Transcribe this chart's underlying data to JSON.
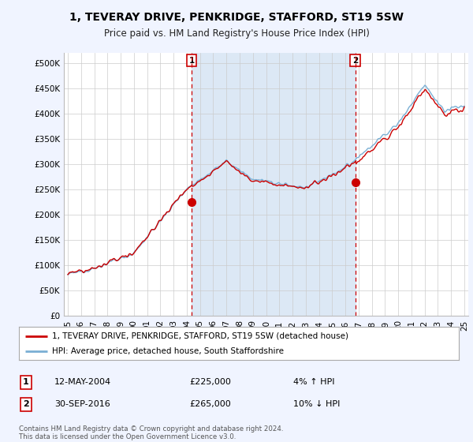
{
  "title": "1, TEVERAY DRIVE, PENKRIDGE, STAFFORD, ST19 5SW",
  "subtitle": "Price paid vs. HM Land Registry's House Price Index (HPI)",
  "ylabel_ticks": [
    "£0",
    "£50K",
    "£100K",
    "£150K",
    "£200K",
    "£250K",
    "£300K",
    "£350K",
    "£400K",
    "£450K",
    "£500K"
  ],
  "ytick_values": [
    0,
    50000,
    100000,
    150000,
    200000,
    250000,
    300000,
    350000,
    400000,
    450000,
    500000
  ],
  "ylim": [
    0,
    520000
  ],
  "xlim_start": 1994.7,
  "xlim_end": 2025.3,
  "xtick_years": [
    1995,
    1996,
    1997,
    1998,
    1999,
    2000,
    2001,
    2002,
    2003,
    2004,
    2005,
    2006,
    2007,
    2008,
    2009,
    2010,
    2011,
    2012,
    2013,
    2014,
    2015,
    2016,
    2017,
    2018,
    2019,
    2020,
    2021,
    2022,
    2023,
    2024,
    2025
  ],
  "sale1_x": 2004.36,
  "sale1_y": 225000,
  "sale1_label": "1",
  "sale1_date": "12-MAY-2004",
  "sale1_price": "£225,000",
  "sale1_hpi": "4% ↑ HPI",
  "sale2_x": 2016.75,
  "sale2_y": 265000,
  "sale2_label": "2",
  "sale2_date": "30-SEP-2016",
  "sale2_price": "£265,000",
  "sale2_hpi": "10% ↓ HPI",
  "line_color_red": "#cc0000",
  "line_color_blue": "#7aafd4",
  "dashed_color": "#cc0000",
  "bg_color": "#f0f4ff",
  "plot_bg": "#ffffff",
  "shade_color": "#dce8f5",
  "legend_label_red": "1, TEVERAY DRIVE, PENKRIDGE, STAFFORD, ST19 5SW (detached house)",
  "legend_label_blue": "HPI: Average price, detached house, South Staffordshire",
  "footer": "Contains HM Land Registry data © Crown copyright and database right 2024.\nThis data is licensed under the Open Government Licence v3.0.",
  "sale_marker_color": "#cc0000"
}
